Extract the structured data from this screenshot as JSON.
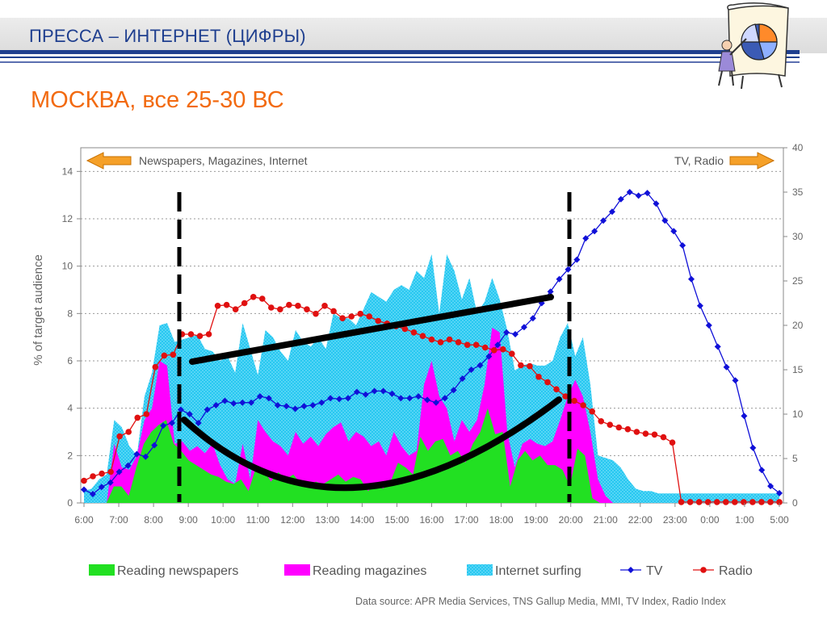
{
  "header": {
    "title": "ПРЕССА – ИНТЕРНЕТ  (ЦИФРЫ)"
  },
  "subtitle": "МОСКВА, все 25-30 ВС",
  "source": "Data source: APR Media Services, TNS Gallup Media, MMI, TV Index, Radio Index",
  "colors": {
    "header_text": "#1f3f8f",
    "subtitle": "#f26a10",
    "newspapers": "#22e022",
    "magazines": "#ff00ff",
    "internet": "#27c8f0",
    "tv": "#1010d8",
    "radio": "#e01010",
    "arrow": "#f5a028"
  },
  "icons": {
    "clipart": "presenter-pie-chart-icon"
  },
  "chart_data": {
    "type": "area",
    "x_tick_labels": [
      "6:00",
      "7:00",
      "8:00",
      "9:00",
      "10:00",
      "11:00",
      "12:00",
      "13:00",
      "14:00",
      "15:00",
      "16:00",
      "17:00",
      "18:00",
      "19:00",
      "20:00",
      "21:00",
      "22:00",
      "23:00",
      "0:00",
      "1:00",
      "5:00"
    ],
    "ylabel": "% of  target audience",
    "ylim": [
      0,
      15
    ],
    "y_ticks": [
      0,
      2,
      4,
      6,
      8,
      10,
      12,
      14
    ],
    "y2lim": [
      0,
      40
    ],
    "y2_ticks": [
      0,
      5,
      10,
      15,
      20,
      25,
      30,
      35,
      40
    ],
    "grid": true,
    "annotations": {
      "left": "Newspapers, Magazines, Internet",
      "right": "TV, Radio"
    },
    "legend_position": "bottom",
    "series": [
      {
        "name": "Reading newspapers",
        "kind": "area",
        "axis": "left",
        "values": [
          0,
          0,
          0,
          0,
          0.7,
          0.7,
          0.3,
          1.5,
          2.5,
          3.0,
          3.3,
          3.5,
          2.5,
          2.2,
          1.8,
          1.6,
          1.4,
          1.2,
          1.1,
          0.9,
          0.8,
          1.0,
          0.5,
          1.5,
          1.4,
          0.9,
          1.3,
          1.0,
          1.2,
          0.8,
          0.7,
          0.9,
          0.8,
          1.0,
          1.2,
          0.9,
          1.1,
          1.0,
          0.5,
          0.8,
          0.6,
          0.9,
          1.7,
          1.5,
          1.2,
          2.8,
          2.2,
          2.6,
          2.7,
          2.0,
          2.2,
          1.7,
          2.5,
          3.0,
          4.0,
          2.9,
          3.0,
          0.7,
          1.8,
          2.2,
          1.8,
          2.0,
          1.6,
          1.6,
          1.4,
          0.7,
          2.3,
          2.0,
          0.2,
          0,
          0,
          0,
          0,
          0,
          0,
          0,
          0,
          0,
          0,
          0,
          0,
          0,
          0,
          0,
          0,
          0,
          0,
          0,
          0,
          0,
          0,
          0,
          0,
          0
        ]
      },
      {
        "name": "Reading magazines",
        "kind": "area",
        "axis": "left",
        "values": [
          0,
          0,
          0,
          0,
          2.5,
          1.5,
          1.4,
          2.0,
          3.5,
          4.0,
          6.0,
          5.8,
          2.5,
          2.6,
          2.2,
          2.4,
          2.1,
          2.5,
          1.6,
          1.0,
          0.8,
          2.5,
          1.0,
          3.5,
          3.0,
          2.6,
          2.4,
          2.0,
          3.0,
          2.5,
          2.8,
          2.4,
          2.9,
          3.2,
          3.4,
          2.6,
          3.0,
          2.8,
          2.4,
          2.6,
          2.0,
          3.0,
          2.4,
          2.0,
          2.2,
          5.0,
          6.0,
          4.5,
          4.0,
          2.6,
          3.5,
          3.0,
          3.5,
          5.0,
          7.4,
          7.2,
          3.0,
          1.5,
          2.5,
          2.7,
          2.5,
          2.4,
          2.6,
          3.5,
          4.5,
          5.2,
          4.5,
          3.0,
          1.0,
          0.3,
          0,
          0,
          0,
          0,
          0,
          0,
          0,
          0,
          0,
          0,
          0,
          0,
          0,
          0,
          0,
          0,
          0,
          0,
          0,
          0,
          0,
          0,
          0
        ]
      },
      {
        "name": "Internet surfing",
        "kind": "area",
        "axis": "left",
        "values": [
          0.5,
          0.6,
          1.0,
          1.2,
          3.5,
          3.2,
          2.4,
          2.0,
          4.5,
          5.5,
          7.5,
          7.6,
          6.8,
          6.9,
          7.0,
          7.1,
          6.5,
          6.4,
          6.0,
          6.2,
          5.5,
          7.6,
          6.5,
          5.4,
          7.3,
          7.0,
          6.4,
          6.0,
          7.3,
          6.8,
          6.6,
          7.0,
          6.5,
          8.0,
          7.8,
          7.8,
          7.5,
          8.2,
          8.9,
          8.7,
          8.5,
          9.0,
          9.2,
          9.0,
          9.8,
          9.5,
          10.5,
          8.0,
          10.5,
          9.8,
          8.6,
          9.5,
          8.0,
          8.5,
          9.5,
          8.6,
          7.3,
          5.6,
          5.8,
          5.9,
          5.8,
          5.8,
          6.0,
          7.0,
          7.6,
          6.2,
          7.0,
          5.0,
          2.0,
          1.9,
          1.8,
          1.5,
          1.0,
          0.6,
          0.5,
          0.5,
          0.4,
          0.4,
          0.4,
          0.4,
          0.4,
          0.4,
          0.4,
          0.4,
          0.4,
          0.4,
          0.4,
          0.4,
          0.4,
          0.4,
          0.4,
          0.4,
          0.4
        ]
      },
      {
        "name": "TV",
        "kind": "line",
        "axis": "right",
        "values": [
          1.5,
          1.0,
          1.8,
          2.3,
          3.5,
          4.2,
          5.5,
          5.2,
          6.5,
          8.7,
          9.0,
          10.5,
          10.0,
          9.0,
          10.5,
          11.0,
          11.5,
          11.2,
          11.3,
          11.3,
          12.0,
          11.8,
          11.0,
          10.9,
          10.6,
          10.9,
          11.0,
          11.3,
          11.8,
          11.7,
          11.8,
          12.5,
          12.2,
          12.6,
          12.6,
          12.3,
          11.8,
          11.8,
          12.0,
          11.6,
          11.3,
          11.8,
          12.7,
          14.0,
          15.0,
          15.5,
          16.5,
          17.8,
          19.2,
          19.0,
          19.8,
          20.8,
          22.5,
          23.8,
          25.2,
          26.3,
          27.4,
          29.8,
          30.6,
          31.8,
          32.8,
          34.2,
          35.0,
          34.6,
          34.9,
          33.7,
          31.8,
          30.6,
          29.0,
          25.2,
          22.2,
          20.0,
          17.6,
          15.3,
          13.8,
          9.8,
          6.2,
          3.7,
          1.9,
          1.1
        ]
      },
      {
        "name": "Radio",
        "kind": "line",
        "axis": "right",
        "values": [
          2.5,
          3.0,
          3.3,
          3.5,
          7.5,
          8.0,
          9.6,
          10.0,
          15.3,
          16.6,
          16.7,
          19.0,
          19.0,
          18.8,
          19.0,
          22.2,
          22.3,
          21.8,
          22.5,
          23.2,
          23.0,
          22.0,
          21.8,
          22.3,
          22.2,
          21.8,
          21.3,
          22.2,
          21.6,
          20.8,
          21.0,
          21.3,
          21.0,
          20.5,
          20.2,
          19.9,
          19.6,
          19.2,
          18.8,
          18.4,
          18.1,
          18.4,
          18.1,
          17.8,
          17.8,
          17.5,
          17.2,
          17.3,
          16.8,
          15.5,
          15.4,
          14.2,
          13.6,
          12.8,
          12.0,
          11.5,
          11.0,
          10.3,
          9.2,
          8.8,
          8.5,
          8.3,
          8.0,
          7.8,
          7.7,
          7.4,
          6.8,
          0.1,
          0.1,
          0.1,
          0.1,
          0.1,
          0.1,
          0.1,
          0.1,
          0.1,
          0.1,
          0.1,
          0.1
        ]
      }
    ]
  }
}
